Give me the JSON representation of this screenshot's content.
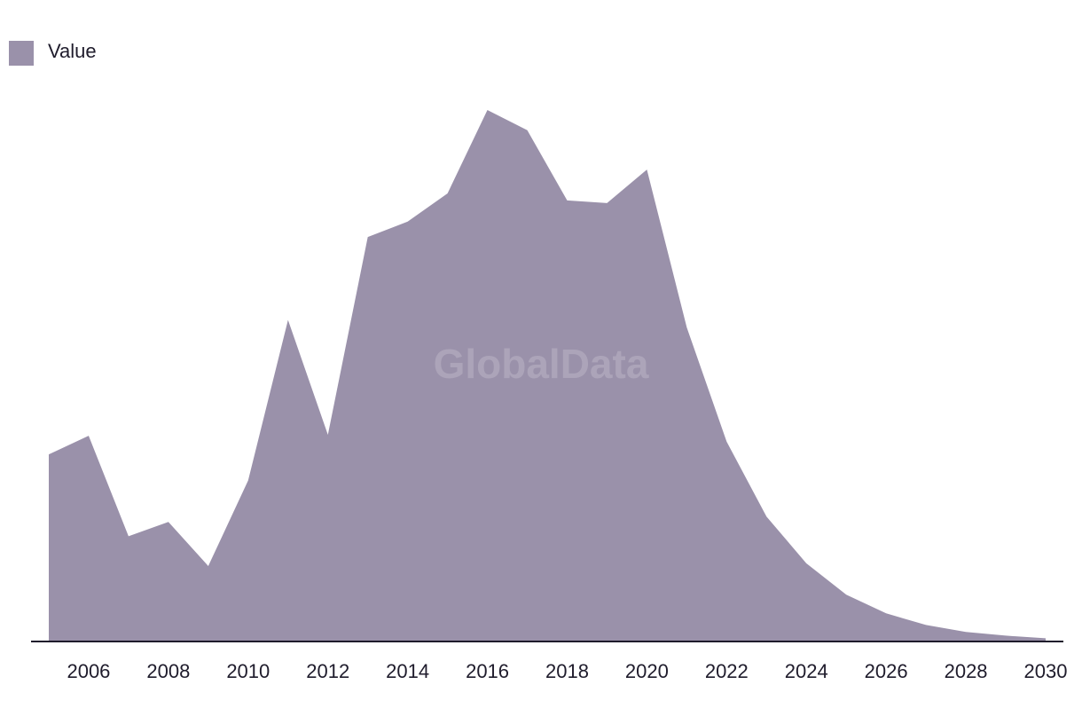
{
  "watermark": "GlobalData",
  "colors": {
    "area": "#9a91aa",
    "axis": "#1f1c2c",
    "text": "#1f1c2c"
  },
  "chart_data": {
    "type": "area",
    "title": "",
    "xlabel": "",
    "ylabel": "",
    "legend": {
      "position": "top-left",
      "entries": [
        "Value"
      ]
    },
    "grid": false,
    "x": [
      2005,
      2006,
      2007,
      2008,
      2009,
      2010,
      2011,
      2012,
      2013,
      2014,
      2015,
      2016,
      2017,
      2018,
      2019,
      2020,
      2021,
      2022,
      2023,
      2024,
      2025,
      2026,
      2027,
      2028,
      2029,
      2030
    ],
    "xlim": [
      2005,
      2030
    ],
    "xticks": [
      "2006",
      "2008",
      "2010",
      "2012",
      "2014",
      "2016",
      "2018",
      "2020",
      "2022",
      "2024",
      "2026",
      "2028",
      "2030"
    ],
    "ylim": [
      0,
      100
    ],
    "series": [
      {
        "name": "Value",
        "values": [
          35.2,
          38.7,
          19.8,
          22.5,
          14.2,
          30.3,
          60.5,
          38.9,
          76.1,
          79.0,
          84.3,
          100,
          96.2,
          83.0,
          82.5,
          88.8,
          59.1,
          37.6,
          23.5,
          14.7,
          8.8,
          5.3,
          3.1,
          1.8,
          1.1,
          0.6
        ]
      }
    ]
  }
}
